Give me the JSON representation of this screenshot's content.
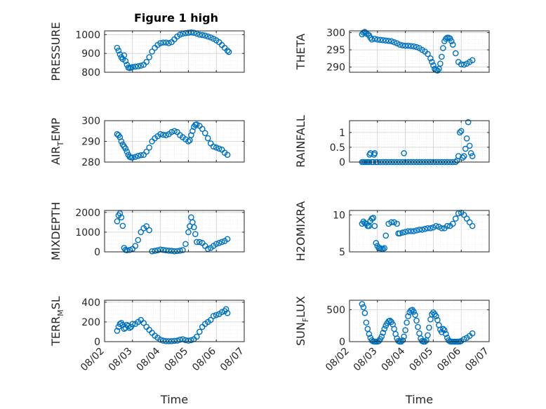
{
  "title": "Figure 1 high",
  "colors": {
    "marker": "#0072BD",
    "axis": "#262626",
    "grid": "#d0d0d0"
  },
  "chart_data": [
    {
      "type": "scatter",
      "ylabel": "PRESSURE",
      "ylim": [
        800,
        1020
      ],
      "yticks": [
        800,
        900,
        1000
      ],
      "x": [
        2.45,
        2.5,
        2.55,
        2.6,
        2.65,
        2.7,
        2.75,
        2.8,
        2.85,
        2.9,
        2.95,
        3.0,
        3.1,
        3.2,
        3.3,
        3.4,
        3.5,
        3.6,
        3.7,
        3.8,
        3.9,
        4.0,
        4.1,
        4.2,
        4.3,
        4.4,
        4.5,
        4.6,
        4.7,
        4.8,
        4.9,
        5.0,
        5.1,
        5.2,
        5.3,
        5.4,
        5.5,
        5.6,
        5.7,
        5.8,
        5.9,
        6.0,
        6.1,
        6.2,
        6.3,
        6.4,
        6.45
      ],
      "y": [
        930,
        915,
        895,
        880,
        870,
        890,
        860,
        840,
        825,
        822,
        825,
        828,
        830,
        832,
        835,
        840,
        855,
        880,
        910,
        930,
        945,
        955,
        958,
        958,
        955,
        960,
        975,
        990,
        1000,
        1005,
        1008,
        1010,
        1012,
        1010,
        1005,
        1000,
        998,
        995,
        990,
        985,
        978,
        970,
        960,
        945,
        930,
        915,
        908
      ]
    },
    {
      "type": "scatter",
      "ylabel": "THETA",
      "ylim": [
        288.5,
        300.5
      ],
      "yticks": [
        290,
        295,
        300
      ],
      "x": [
        2.45,
        2.5,
        2.55,
        2.6,
        2.65,
        2.7,
        2.75,
        2.8,
        2.9,
        3.0,
        3.1,
        3.2,
        3.3,
        3.4,
        3.5,
        3.6,
        3.7,
        3.8,
        3.9,
        4.0,
        4.1,
        4.2,
        4.3,
        4.4,
        4.5,
        4.6,
        4.7,
        4.8,
        4.9,
        4.95,
        5.0,
        5.05,
        5.1,
        5.15,
        5.2,
        5.25,
        5.3,
        5.35,
        5.4,
        5.45,
        5.5,
        5.55,
        5.6,
        5.65,
        5.7,
        5.8,
        5.9,
        6.0,
        6.1,
        6.2,
        6.3,
        6.4
      ],
      "y": [
        299.5,
        300,
        300.2,
        299.8,
        299.5,
        299.2,
        298.5,
        298,
        298.2,
        298,
        297.9,
        297.8,
        297.7,
        297.6,
        297.5,
        297.2,
        296.9,
        296.5,
        296.3,
        296.2,
        296.2,
        296.1,
        296,
        295.8,
        295.5,
        295,
        294.5,
        293.8,
        292.5,
        291.5,
        290.5,
        289.5,
        289.2,
        289,
        289.5,
        291,
        293,
        295.5,
        297.5,
        298.2,
        298.5,
        298.5,
        298.3,
        297.5,
        296.5,
        294,
        291.5,
        290.8,
        290.7,
        291,
        291.5,
        292
      ]
    },
    {
      "type": "scatter",
      "ylabel": "AIR_TEMP",
      "ylim": [
        280,
        300
      ],
      "yticks": [
        280,
        290,
        300
      ],
      "x": [
        2.45,
        2.5,
        2.55,
        2.6,
        2.65,
        2.7,
        2.75,
        2.8,
        2.85,
        2.9,
        2.95,
        3.0,
        3.1,
        3.2,
        3.3,
        3.4,
        3.5,
        3.6,
        3.7,
        3.8,
        3.9,
        4.0,
        4.1,
        4.2,
        4.3,
        4.4,
        4.5,
        4.6,
        4.7,
        4.8,
        4.9,
        5.0,
        5.05,
        5.1,
        5.15,
        5.2,
        5.25,
        5.3,
        5.4,
        5.5,
        5.6,
        5.7,
        5.8,
        5.9,
        6.0,
        6.1,
        6.2,
        6.3,
        6.4
      ],
      "y": [
        293.5,
        293,
        292,
        290,
        288.5,
        287.5,
        286.5,
        285,
        283.5,
        282.5,
        282.2,
        282.2,
        282.5,
        283,
        283.3,
        283.5,
        285,
        287,
        290,
        291.5,
        292.5,
        293.5,
        293.2,
        293,
        293.5,
        294.5,
        295,
        294.5,
        293,
        292,
        291,
        290,
        290.5,
        293,
        295,
        297,
        298,
        298.2,
        297.5,
        296,
        294,
        291.5,
        289,
        287.5,
        287,
        286.5,
        286,
        284.5,
        283.5
      ]
    },
    {
      "type": "scatter",
      "ylabel": "RAINFALL",
      "ylim": [
        0,
        1.4
      ],
      "yticks": [
        0,
        0.5,
        1
      ],
      "x": [
        2.45,
        2.5,
        2.55,
        2.6,
        2.65,
        2.7,
        2.72,
        2.75,
        2.8,
        2.85,
        2.88,
        2.9,
        2.95,
        3.0,
        3.1,
        3.2,
        3.3,
        3.4,
        3.5,
        3.6,
        3.7,
        3.8,
        3.9,
        3.95,
        4.0,
        4.1,
        4.2,
        4.3,
        4.4,
        4.5,
        4.6,
        4.7,
        4.8,
        4.9,
        5.0,
        5.1,
        5.2,
        5.3,
        5.4,
        5.5,
        5.6,
        5.7,
        5.8,
        5.85,
        5.9,
        5.95,
        6.0,
        6.05,
        6.1,
        6.15,
        6.2,
        6.25,
        6.3,
        6.35,
        6.4
      ],
      "y": [
        0,
        0,
        0,
        0,
        0,
        0,
        0.25,
        0.3,
        0,
        0,
        0.25,
        0.3,
        0,
        0,
        0,
        0,
        0,
        0,
        0,
        0,
        0,
        0,
        0,
        0.3,
        0,
        0,
        0,
        0,
        0,
        0,
        0,
        0,
        0,
        0,
        0,
        0,
        0,
        0,
        0,
        0,
        0,
        0,
        0,
        0.05,
        0.2,
        1.0,
        1.05,
        0.15,
        0.2,
        0.45,
        0.8,
        1.35,
        0.55,
        0.3,
        0.2
      ]
    },
    {
      "type": "scatter",
      "ylabel": "MIXDEPTH",
      "ylim": [
        0,
        2100
      ],
      "yticks": [
        0,
        1000,
        2000
      ],
      "x": [
        2.45,
        2.5,
        2.55,
        2.6,
        2.65,
        2.7,
        2.75,
        2.8,
        2.9,
        3.0,
        3.1,
        3.2,
        3.3,
        3.4,
        3.5,
        3.6,
        3.7,
        3.8,
        3.9,
        4.0,
        4.1,
        4.2,
        4.3,
        4.4,
        4.5,
        4.6,
        4.7,
        4.8,
        4.9,
        5.0,
        5.05,
        5.1,
        5.15,
        5.2,
        5.25,
        5.3,
        5.4,
        5.5,
        5.6,
        5.7,
        5.8,
        5.9,
        6.0,
        6.1,
        6.2,
        6.3,
        6.4
      ],
      "y": [
        1550,
        1850,
        1950,
        1750,
        1320,
        200,
        100,
        80,
        100,
        150,
        300,
        600,
        1000,
        1200,
        1300,
        1100,
        30,
        50,
        80,
        120,
        100,
        80,
        60,
        50,
        30,
        40,
        60,
        90,
        400,
        1000,
        1300,
        1750,
        1500,
        1250,
        900,
        500,
        500,
        450,
        300,
        150,
        200,
        300,
        400,
        450,
        500,
        550,
        650
      ]
    },
    {
      "type": "scatter",
      "ylabel": "H2OMIXRA",
      "ylim": [
        5,
        10.6
      ],
      "yticks": [
        5,
        10
      ],
      "x": [
        2.45,
        2.5,
        2.55,
        2.6,
        2.65,
        2.7,
        2.75,
        2.8,
        2.85,
        2.9,
        2.95,
        3.0,
        3.05,
        3.1,
        3.15,
        3.2,
        3.25,
        3.3,
        3.4,
        3.5,
        3.6,
        3.7,
        3.75,
        3.8,
        3.9,
        4.0,
        4.1,
        4.2,
        4.3,
        4.4,
        4.5,
        4.6,
        4.7,
        4.8,
        4.9,
        5.0,
        5.1,
        5.2,
        5.3,
        5.4,
        5.5,
        5.6,
        5.7,
        5.8,
        5.9,
        6.0,
        6.1,
        6.2,
        6.3,
        6.4
      ],
      "y": [
        8.8,
        9.1,
        8.9,
        8.8,
        8.5,
        8.5,
        9.2,
        9.5,
        9.6,
        8.5,
        6.2,
        5.8,
        5.5,
        5.5,
        5.4,
        5.4,
        5.5,
        7.2,
        8.8,
        9.0,
        9.0,
        8.8,
        7.5,
        7.5,
        7.6,
        7.7,
        7.8,
        7.8,
        7.8,
        7.9,
        8.0,
        8.0,
        8.1,
        8.2,
        8.2,
        8.3,
        8.5,
        8.4,
        8.2,
        8.2,
        8.5,
        8.5,
        8.8,
        9.5,
        10.2,
        10.3,
        10.0,
        9.5,
        9.0,
        8.5
      ]
    },
    {
      "type": "scatter",
      "ylabel": "TERR_MSL",
      "ylim": [
        0,
        420
      ],
      "yticks": [
        0,
        200,
        400
      ],
      "x": [
        2.45,
        2.5,
        2.55,
        2.6,
        2.65,
        2.7,
        2.75,
        2.8,
        2.85,
        2.9,
        2.95,
        3.0,
        3.1,
        3.2,
        3.3,
        3.4,
        3.5,
        3.6,
        3.7,
        3.8,
        3.9,
        4.0,
        4.1,
        4.2,
        4.3,
        4.4,
        4.5,
        4.6,
        4.7,
        4.8,
        4.9,
        5.0,
        5.1,
        5.2,
        5.3,
        5.4,
        5.5,
        5.6,
        5.7,
        5.8,
        5.9,
        6.0,
        6.1,
        6.2,
        6.3,
        6.35,
        6.4
      ],
      "y": [
        110,
        150,
        180,
        190,
        170,
        130,
        140,
        170,
        160,
        140,
        150,
        180,
        180,
        200,
        220,
        190,
        150,
        120,
        90,
        60,
        40,
        20,
        10,
        5,
        5,
        5,
        8,
        10,
        20,
        25,
        15,
        10,
        15,
        25,
        50,
        100,
        150,
        180,
        200,
        220,
        260,
        270,
        280,
        300,
        310,
        330,
        290
      ]
    },
    {
      "type": "scatter",
      "ylabel": "SUN_FLUX",
      "ylim": [
        0,
        650
      ],
      "yticks": [
        0,
        500
      ],
      "x": [
        2.45,
        2.5,
        2.55,
        2.6,
        2.65,
        2.7,
        2.75,
        2.8,
        2.85,
        2.9,
        2.95,
        3.0,
        3.05,
        3.1,
        3.15,
        3.2,
        3.25,
        3.3,
        3.35,
        3.4,
        3.45,
        3.5,
        3.55,
        3.6,
        3.65,
        3.7,
        3.75,
        3.8,
        3.85,
        3.9,
        3.95,
        4.0,
        4.05,
        4.1,
        4.15,
        4.2,
        4.25,
        4.3,
        4.35,
        4.4,
        4.45,
        4.5,
        4.55,
        4.6,
        4.65,
        4.7,
        4.75,
        4.8,
        4.85,
        4.9,
        4.95,
        5.0,
        5.05,
        5.1,
        5.15,
        5.2,
        5.25,
        5.3,
        5.35,
        5.4,
        5.45,
        5.5,
        5.55,
        5.6,
        5.65,
        5.7,
        5.75,
        5.8,
        5.85,
        5.9,
        5.95,
        6.0,
        6.1,
        6.2,
        6.3,
        6.4
      ],
      "y": [
        590,
        540,
        450,
        300,
        200,
        120,
        60,
        20,
        5,
        0,
        0,
        0,
        10,
        40,
        80,
        140,
        200,
        250,
        290,
        320,
        330,
        310,
        270,
        200,
        120,
        50,
        10,
        0,
        0,
        20,
        80,
        180,
        300,
        400,
        460,
        490,
        500,
        470,
        420,
        330,
        230,
        130,
        50,
        10,
        0,
        0,
        20,
        100,
        220,
        350,
        430,
        460,
        430,
        400,
        340,
        260,
        190,
        150,
        200,
        180,
        120,
        60,
        20,
        5,
        0,
        0,
        0,
        0,
        0,
        0,
        0,
        10,
        40,
        60,
        90,
        130
      ]
    }
  ],
  "xtick_labels": [
    "08/02",
    "08/03",
    "08/04",
    "08/05",
    "08/06",
    "08/07"
  ],
  "xtick_values": [
    2,
    3,
    4,
    5,
    6,
    7
  ],
  "xlabel": "Time"
}
